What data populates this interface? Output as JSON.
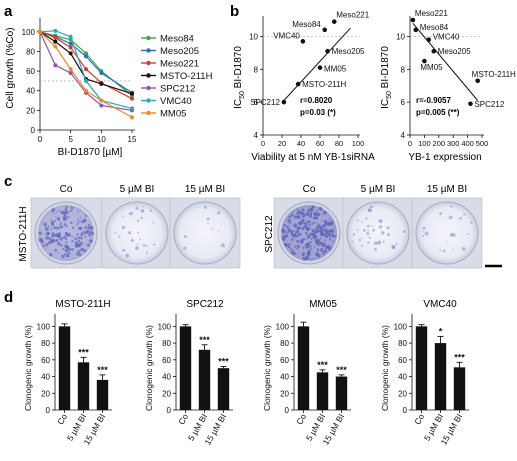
{
  "panel_letters": [
    "a",
    "b",
    "c",
    "d"
  ],
  "colors": {
    "Meso84": "#3aa84f",
    "Meso205": "#2b6fb6",
    "Meso221": "#d83a2a",
    "MSTO-211H": "#111111",
    "SPC212": "#8b55a8",
    "VMC40": "#2aa9b8",
    "MM05": "#f08a24",
    "stain": "#6467b8",
    "bar": "#111111"
  },
  "chart_data": [
    {
      "id": "a",
      "type": "line",
      "xlabel": "BI-D1870 [µM]",
      "ylabel": "Cell growth (%Co)",
      "x": [
        0,
        2.5,
        5,
        7.5,
        10,
        15
      ],
      "xticks": [
        0,
        5,
        10,
        15
      ],
      "yticks": [
        0,
        20,
        40,
        60,
        80,
        100
      ],
      "xlim": [
        0,
        15
      ],
      "ylim": [
        0,
        110
      ],
      "legend_position": "right",
      "series": [
        {
          "name": "Meso84",
          "values": [
            100,
            96,
            92,
            78,
            60,
            35
          ]
        },
        {
          "name": "Meso205",
          "values": [
            100,
            95,
            88,
            75,
            58,
            38
          ]
        },
        {
          "name": "Meso221",
          "values": [
            100,
            94,
            84,
            62,
            48,
            32
          ]
        },
        {
          "name": "MSTO-211H",
          "values": [
            100,
            90,
            78,
            52,
            47,
            37
          ]
        },
        {
          "name": "SPC212",
          "values": [
            100,
            66,
            58,
            38,
            25,
            20
          ]
        },
        {
          "name": "VMC40",
          "values": [
            100,
            101,
            95,
            50,
            30,
            22
          ]
        },
        {
          "name": "MM05",
          "values": [
            100,
            85,
            62,
            40,
            30,
            13
          ]
        }
      ]
    },
    {
      "id": "b1",
      "type": "scatter",
      "xlabel": "Viability at 5 nM YB-1siRNA",
      "ylabel": "IC50 BI-D1870",
      "xticks": [
        0,
        20,
        40,
        60,
        80,
        100
      ],
      "yticks": [
        4,
        6,
        8,
        10
      ],
      "xlim": [
        0,
        100
      ],
      "ylim": [
        4,
        11
      ],
      "points": [
        {
          "label": "Meso221",
          "x": 75,
          "y": 10.9
        },
        {
          "label": "Meso84",
          "x": 65,
          "y": 10.4
        },
        {
          "label": "VMC40",
          "x": 42,
          "y": 9.7
        },
        {
          "label": "Meso205",
          "x": 68,
          "y": 9.1
        },
        {
          "label": "MM05",
          "x": 60,
          "y": 8.1
        },
        {
          "label": "MSTO-211H",
          "x": 37,
          "y": 7.1
        },
        {
          "label": "SPC212",
          "x": 22,
          "y": 6.0
        }
      ],
      "fit_line": {
        "x": [
          22,
          92
        ],
        "y": [
          6.1,
          10.5
        ]
      },
      "r_text": "r=0.8020",
      "p_text": "p=0.03 (*)"
    },
    {
      "id": "b2",
      "type": "scatter",
      "xlabel": "YB-1 expression",
      "ylabel": "IC50 BI-D1870",
      "xticks": [
        0,
        100,
        200,
        300,
        400,
        500
      ],
      "yticks": [
        4,
        6,
        8,
        10
      ],
      "xlim": [
        0,
        500
      ],
      "ylim": [
        4,
        11
      ],
      "points": [
        {
          "label": "Meso221",
          "x": 20,
          "y": 11.0
        },
        {
          "label": "Meso84",
          "x": 40,
          "y": 10.4
        },
        {
          "label": "VMC40",
          "x": 130,
          "y": 9.8
        },
        {
          "label": "Meso205",
          "x": 165,
          "y": 9.1
        },
        {
          "label": "MM05",
          "x": 100,
          "y": 8.5
        },
        {
          "label": "MSTO-211H",
          "x": 470,
          "y": 7.3
        },
        {
          "label": "SPC212",
          "x": 420,
          "y": 5.9
        }
      ],
      "fit_line": {
        "x": [
          20,
          470
        ],
        "y": [
          10.8,
          6.1
        ]
      },
      "r_text": "r=-0.9057",
      "p_text": "p=0.005 (**)"
    },
    {
      "id": "d1",
      "type": "bar",
      "title": "MSTO-211H",
      "ylabel": "Clonogenic growth (%)",
      "categories": [
        "Co",
        "5 µM BI",
        "15 µM BI"
      ],
      "values": [
        100,
        57,
        36
      ],
      "errors": [
        3,
        6,
        6
      ],
      "significance": [
        "",
        "***",
        "***"
      ],
      "yticks": [
        0,
        20,
        40,
        60,
        80,
        100
      ],
      "ylim": [
        0,
        110
      ]
    },
    {
      "id": "d2",
      "type": "bar",
      "title": "SPC212",
      "ylabel": "Clonogenic growth (%)",
      "categories": [
        "Co",
        "5 µM BI",
        "15 µM BI"
      ],
      "values": [
        100,
        72,
        50
      ],
      "errors": [
        2,
        6,
        2
      ],
      "significance": [
        "",
        "***",
        "***"
      ],
      "yticks": [
        0,
        20,
        40,
        60,
        80,
        100
      ],
      "ylim": [
        0,
        110
      ]
    },
    {
      "id": "d3",
      "type": "bar",
      "title": "MM05",
      "ylabel": "Clonogenic growth (%)",
      "categories": [
        "Co",
        "5 µM BI",
        "15 µM BI"
      ],
      "values": [
        100,
        45,
        40
      ],
      "errors": [
        5,
        3,
        2
      ],
      "significance": [
        "",
        "***",
        "***"
      ],
      "yticks": [
        0,
        20,
        40,
        60,
        80,
        100
      ],
      "ylim": [
        0,
        110
      ]
    },
    {
      "id": "d4",
      "type": "bar",
      "title": "VMC40",
      "ylabel": "Clonogenic growth (%)",
      "categories": [
        "Co",
        "5 µM BI",
        "15 µM BI"
      ],
      "values": [
        100,
        80,
        51
      ],
      "errors": [
        2,
        8,
        6
      ],
      "significance": [
        "",
        "*",
        "***"
      ],
      "yticks": [
        0,
        20,
        40,
        60,
        80,
        100
      ],
      "ylim": [
        0,
        110
      ]
    }
  ],
  "colony_assay": {
    "columns": [
      "Co",
      "5 µM BI",
      "15 µM BI"
    ],
    "rows": [
      {
        "cell_line": "MSTO-211H",
        "density": [
          0.75,
          0.12,
          0.05
        ]
      },
      {
        "cell_line": "SPC212",
        "density": [
          1.0,
          0.15,
          0.08
        ]
      }
    ]
  }
}
